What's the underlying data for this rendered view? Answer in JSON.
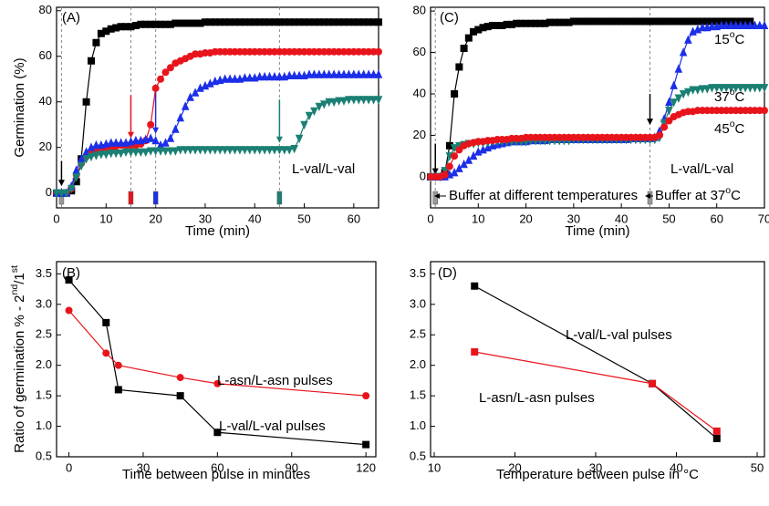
{
  "chart_data": [
    {
      "type": "line",
      "panel": "A",
      "annotations": [
        "(A)",
        "L-val/L-val"
      ],
      "xlabel": "Time (min)",
      "ylabel": "Germination (%)",
      "xlim": [
        0,
        65
      ],
      "ylim": [
        -6.5,
        81.5
      ],
      "xticks": [
        0,
        10,
        20,
        30,
        40,
        50,
        60
      ],
      "yticks": [
        0,
        20,
        40,
        60,
        80
      ],
      "vlines": [
        1,
        15,
        20,
        45
      ],
      "x": [
        0,
        1,
        2,
        3,
        4,
        5,
        6,
        7,
        8,
        9,
        10,
        11,
        12,
        13,
        14,
        15,
        16,
        17,
        18,
        19,
        20,
        21,
        22,
        23,
        24,
        25,
        26,
        27,
        28,
        29,
        30,
        31,
        32,
        33,
        34,
        35,
        36,
        37,
        38,
        39,
        40,
        41,
        42,
        43,
        44,
        45,
        46,
        47,
        48,
        49,
        50,
        51,
        52,
        53,
        54,
        55,
        56,
        57,
        58,
        59,
        60,
        61,
        62,
        63,
        64,
        65
      ],
      "series": [
        {
          "color": "#000000",
          "marker": "square",
          "values": [
            0,
            0,
            0,
            1,
            5,
            15,
            40,
            58,
            66,
            70,
            71,
            72,
            72.5,
            73,
            73,
            73,
            73.5,
            74,
            74,
            74,
            74,
            74,
            74,
            74,
            74.5,
            74.5,
            74.5,
            74.5,
            74.5,
            74.5,
            75,
            75,
            75,
            75,
            75,
            75,
            75,
            75,
            75,
            75,
            75,
            75,
            75,
            75,
            75,
            75,
            75,
            75,
            75,
            75,
            75,
            75,
            75,
            75,
            75,
            75,
            75,
            75,
            75,
            75,
            75,
            75,
            75,
            75,
            75,
            75
          ]
        },
        {
          "color": "#e8141c",
          "marker": "circle",
          "values": [
            0,
            0,
            0,
            2,
            8,
            13,
            16,
            18,
            19,
            19.5,
            20,
            20,
            20.5,
            21,
            21,
            21,
            21,
            21.5,
            23,
            30,
            46,
            50,
            53,
            55,
            57,
            58,
            59,
            60,
            61,
            61,
            61.5,
            61.5,
            62,
            62,
            62,
            62,
            62,
            62,
            62,
            62,
            62,
            62,
            62,
            62,
            62,
            62,
            62,
            62,
            62,
            62,
            62,
            62,
            62,
            62,
            62,
            62,
            62,
            62,
            62,
            62,
            62,
            62,
            62,
            62,
            62,
            62
          ]
        },
        {
          "color": "#1c2fe8",
          "marker": "tri-up",
          "values": [
            0,
            0,
            0,
            3,
            10,
            15,
            18,
            20,
            21,
            21,
            21.5,
            22,
            22,
            22,
            22,
            22.5,
            23,
            23,
            23.5,
            24,
            23,
            21,
            22,
            24,
            28,
            33,
            38,
            42,
            44,
            46,
            47,
            48,
            49,
            49.5,
            50,
            50,
            50,
            50,
            50.5,
            50.5,
            50.5,
            51,
            51,
            51,
            51,
            51,
            51,
            51.5,
            51.5,
            51.5,
            51.5,
            52,
            52,
            52,
            52,
            52,
            52,
            52,
            52,
            52,
            52,
            52,
            52,
            52,
            52,
            52
          ]
        },
        {
          "color": "#1b8073",
          "marker": "tri-down",
          "values": [
            0,
            0,
            0,
            2,
            7,
            12,
            15,
            16,
            16.5,
            17,
            17,
            17.5,
            17.5,
            17.5,
            18,
            18,
            18,
            18,
            18,
            18.5,
            18.5,
            18.5,
            18.5,
            18.5,
            18.5,
            19,
            19,
            19,
            19,
            19,
            19,
            19,
            19,
            19,
            19,
            19,
            19,
            19,
            19,
            19,
            19,
            19,
            19,
            19,
            19,
            19,
            19,
            19,
            19.5,
            24,
            30,
            34,
            36,
            38,
            39,
            40,
            40,
            40.5,
            40.5,
            41,
            41,
            41,
            41,
            41,
            41,
            41
          ]
        }
      ]
    },
    {
      "type": "line",
      "panel": "B",
      "annotations": [
        "(B)",
        "L-asn/L-asn pulses",
        "L-val/L-val pulses"
      ],
      "xlabel": "Time between pulse in minutes",
      "ylabel": [
        "Ratio of germination % - 2",
        "nd",
        "/1",
        "st"
      ],
      "xlim": [
        -5,
        124
      ],
      "ylim": [
        0.5,
        3.7
      ],
      "xticks": [
        0,
        30,
        60,
        90,
        120
      ],
      "yticks": [
        0.5,
        {
          "value": 1,
          "label": "1.0"
        },
        1.5,
        {
          "value": 2,
          "label": "2.0"
        },
        2.5,
        {
          "value": 3,
          "label": "3.0"
        },
        3.5
      ],
      "x": [
        0,
        15,
        20,
        45,
        60,
        120
      ],
      "series": [
        {
          "color": "#000000",
          "marker": "square",
          "values": [
            3.4,
            2.7,
            1.6,
            1.5,
            0.9,
            0.7
          ]
        },
        {
          "color": "#e8141c",
          "marker": "circle",
          "values": [
            2.9,
            2.2,
            2.0,
            1.8,
            1.7,
            1.5
          ]
        }
      ]
    },
    {
      "type": "line",
      "panel": "C",
      "annotations": [
        "(C)",
        "L-val/L-val",
        [
          "15",
          "o",
          "C"
        ],
        [
          "37",
          "o",
          "C"
        ],
        [
          "45",
          "o",
          "C"
        ],
        "Buffer at different temperatures",
        [
          "Buffer at 37",
          "o",
          "C"
        ]
      ],
      "xlabel": "Time (min)",
      "xlim": [
        0,
        70
      ],
      "ylim": [
        -15,
        81.8
      ],
      "xticks": [
        0,
        10,
        20,
        30,
        40,
        50,
        60,
        70
      ],
      "yticks": [
        0,
        20,
        40,
        60,
        80
      ],
      "vlines": [
        1,
        46
      ],
      "x": [
        0,
        1,
        2,
        3,
        4,
        5,
        6,
        7,
        8,
        9,
        10,
        11,
        12,
        13,
        14,
        15,
        16,
        17,
        18,
        19,
        20,
        21,
        22,
        23,
        24,
        25,
        26,
        27,
        28,
        29,
        30,
        31,
        32,
        33,
        34,
        35,
        36,
        37,
        38,
        39,
        40,
        41,
        42,
        43,
        44,
        45,
        46,
        47,
        48,
        49,
        50,
        51,
        52,
        53,
        54,
        55,
        56,
        57,
        58,
        59,
        60,
        61,
        62,
        63,
        64,
        65,
        66,
        67,
        68,
        69,
        70
      ],
      "series": [
        {
          "color": "#000000",
          "marker": "square",
          "values": [
            0,
            0,
            0,
            2,
            15,
            40,
            53,
            62,
            67,
            70,
            71,
            72,
            72.5,
            73,
            73,
            73,
            73.5,
            73.5,
            74,
            74,
            74,
            74,
            74,
            74,
            74,
            74.5,
            74.5,
            74.5,
            74.5,
            74.5,
            75,
            75,
            75,
            75,
            75,
            75,
            75,
            75,
            75,
            75,
            75,
            75,
            75,
            75,
            75,
            75,
            75,
            75,
            75,
            75,
            75,
            75,
            75,
            75,
            75,
            75,
            75,
            75,
            75,
            75,
            75,
            75,
            75,
            75,
            75,
            75,
            75,
            75,
            null,
            null,
            null
          ]
        },
        {
          "color": "#1c2fe8",
          "marker": "tri-up",
          "values": [
            0,
            0,
            0,
            0,
            1,
            2,
            4,
            6,
            8,
            10,
            12,
            13,
            14,
            15,
            15.5,
            16,
            16.5,
            17,
            17,
            17,
            17,
            17.5,
            17.5,
            17.5,
            17.5,
            18,
            18,
            18,
            18,
            18,
            18,
            18,
            18,
            18,
            18,
            18,
            18,
            18,
            18,
            18,
            18,
            18,
            18.5,
            18.5,
            18.5,
            18.5,
            18.5,
            19,
            22,
            28,
            36,
            44,
            52,
            60,
            66,
            70,
            71,
            72,
            72,
            72.5,
            72.5,
            73,
            73,
            73,
            73,
            73,
            73,
            73,
            73,
            73,
            73
          ]
        },
        {
          "color": "#1b8073",
          "marker": "tri-down",
          "values": [
            0,
            0,
            0,
            3,
            10,
            14,
            15,
            15.5,
            16,
            16,
            16.5,
            16.5,
            16.5,
            17,
            17,
            17,
            17,
            17,
            17,
            17,
            17,
            17.5,
            17.5,
            17.5,
            17.5,
            17.5,
            17.5,
            17.5,
            17.5,
            17.5,
            18,
            18,
            18,
            18,
            18,
            18,
            18,
            18,
            18,
            18,
            18,
            18,
            18,
            18,
            18,
            18,
            18,
            18,
            19,
            26,
            32,
            36,
            38,
            40,
            41,
            42,
            42,
            42.5,
            42.5,
            43,
            43,
            43,
            43,
            43,
            43,
            43,
            43,
            43,
            43,
            43,
            43
          ]
        },
        {
          "color": "#e8141c",
          "marker": "circle",
          "values": [
            0,
            0,
            0,
            1,
            5,
            10,
            13,
            15,
            16,
            16.5,
            17,
            17,
            17.5,
            17.5,
            18,
            18,
            18,
            18.5,
            18.5,
            18.5,
            19,
            19,
            19,
            19,
            19,
            19,
            19,
            19,
            19,
            19,
            19,
            19,
            19,
            19,
            19,
            19,
            19,
            19,
            19,
            19,
            19,
            19,
            19,
            19,
            19,
            19,
            19,
            19,
            20,
            24,
            27,
            29,
            30,
            31,
            31.5,
            31.5,
            32,
            32,
            32,
            32,
            32,
            32,
            32,
            32,
            32,
            32,
            32,
            32,
            32,
            32,
            32
          ]
        }
      ]
    },
    {
      "type": "line",
      "panel": "D",
      "annotations": [
        "(D)",
        "L-val/L-val pulses",
        "L-asn/L-asn pulses"
      ],
      "xlabel": "Temperature between pulse in °C",
      "xlim": [
        9.55,
        50.9
      ],
      "ylim": [
        0.5,
        3.7
      ],
      "xticks": [
        10,
        20,
        30,
        40,
        50
      ],
      "yticks": [
        0.5,
        {
          "value": 1,
          "label": "1.0"
        },
        1.5,
        {
          "value": 2,
          "label": "2.0"
        },
        2.5,
        {
          "value": 3,
          "label": "3.0"
        },
        3.5
      ],
      "x": [
        15,
        37,
        45
      ],
      "series": [
        {
          "color": "#000000",
          "marker": "square",
          "values": [
            3.3,
            1.7,
            0.8
          ]
        },
        {
          "color": "#e8141c",
          "marker": "square",
          "values": [
            2.22,
            1.7,
            0.92
          ]
        }
      ]
    }
  ]
}
